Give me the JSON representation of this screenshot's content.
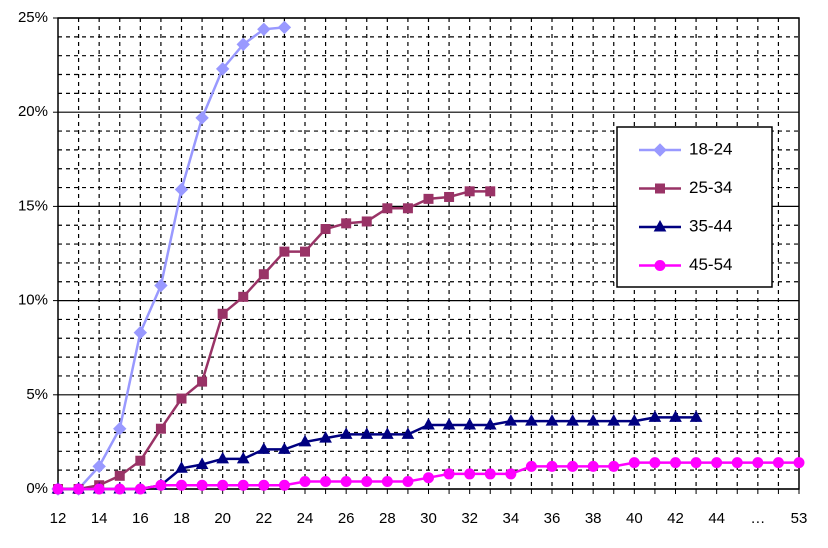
{
  "chart_data": {
    "type": "line",
    "categories": [
      "12",
      null,
      "14",
      null,
      "16",
      null,
      "18",
      null,
      "20",
      null,
      "22",
      null,
      "24",
      null,
      "26",
      null,
      "28",
      null,
      "30",
      null,
      "32",
      null,
      "34",
      null,
      "36",
      null,
      "38",
      null,
      "40",
      null,
      "42",
      null,
      "44",
      null,
      "…",
      null,
      "53"
    ],
    "series": [
      {
        "name": "18-24",
        "color": "#9999ff",
        "marker": "diamond",
        "values": [
          0,
          0,
          1.2,
          3.2,
          8.3,
          10.8,
          15.9,
          19.7,
          22.3,
          23.6,
          24.4,
          24.5,
          null,
          null,
          null,
          null,
          null,
          null,
          null,
          null,
          null,
          null,
          null,
          null,
          null,
          null,
          null,
          null,
          null,
          null,
          null,
          null,
          null,
          null,
          null,
          null,
          null
        ]
      },
      {
        "name": "25-34",
        "color": "#993366",
        "marker": "square",
        "values": [
          0,
          0,
          0.2,
          0.7,
          1.5,
          3.2,
          4.8,
          5.7,
          9.3,
          10.2,
          11.4,
          12.6,
          12.6,
          13.8,
          14.1,
          14.2,
          14.9,
          14.9,
          15.4,
          15.5,
          15.8,
          15.8,
          null,
          null,
          null,
          null,
          null,
          null,
          null,
          null,
          null,
          null,
          null,
          null,
          null,
          null,
          null
        ]
      },
      {
        "name": "35-44",
        "color": "#000080",
        "marker": "triangle",
        "values": [
          0,
          0,
          0,
          0,
          0,
          0.2,
          1.1,
          1.3,
          1.6,
          1.6,
          2.1,
          2.1,
          2.5,
          2.7,
          2.9,
          2.9,
          2.9,
          2.9,
          3.4,
          3.4,
          3.4,
          3.4,
          3.6,
          3.6,
          3.6,
          3.6,
          3.6,
          3.6,
          3.6,
          3.8,
          3.8,
          3.8,
          null,
          null,
          null,
          null,
          null
        ]
      },
      {
        "name": "45-54",
        "color": "#ff00ff",
        "marker": "circle",
        "values": [
          0,
          0,
          0,
          0,
          0,
          0.2,
          0.2,
          0.2,
          0.2,
          0.2,
          0.2,
          0.2,
          0.4,
          0.4,
          0.4,
          0.4,
          0.4,
          0.4,
          0.6,
          0.8,
          0.8,
          0.8,
          0.8,
          1.2,
          1.2,
          1.2,
          1.2,
          1.2,
          1.4,
          1.4,
          1.4,
          1.4,
          1.4,
          1.4,
          1.4,
          1.4,
          1.4
        ]
      }
    ],
    "ylim": [
      0,
      25
    ],
    "yticks": [
      {
        "value": 0,
        "label": "0%"
      },
      {
        "value": 5,
        "label": "5%"
      },
      {
        "value": 10,
        "label": "10%"
      },
      {
        "value": 15,
        "label": "15%"
      },
      {
        "value": 20,
        "label": "20%"
      },
      {
        "value": 25,
        "label": "25%"
      }
    ],
    "grid": true,
    "legend": "right"
  }
}
